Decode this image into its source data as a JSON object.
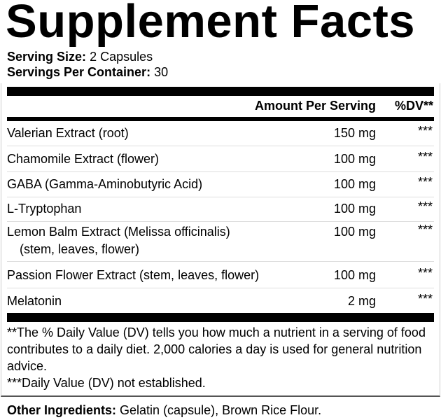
{
  "title": "Supplement Facts",
  "serving_size": {
    "label": "Serving Size:",
    "value": "2 Capsules"
  },
  "servings_per_container": {
    "label": "Servings Per Container:",
    "value": "30"
  },
  "header": {
    "amount": "Amount Per Serving",
    "dv": "%DV**"
  },
  "rows": [
    {
      "name": "Valerian Extract (root)",
      "amount": "150 mg",
      "dv": "***"
    },
    {
      "name": "Chamomile Extract (flower)",
      "amount": "100 mg",
      "dv": "***"
    },
    {
      "name": "GABA (Gamma-Aminobutyric Acid)",
      "amount": "100 mg",
      "dv": "***"
    },
    {
      "name": "L-Tryptophan",
      "amount": "100 mg",
      "dv": "***"
    },
    {
      "name": "Lemon Balm Extract (Melissa officinalis)",
      "name2": "(stem, leaves, flower)",
      "amount": "100 mg",
      "dv": "***"
    },
    {
      "name": "Passion Flower Extract (stem, leaves, flower)",
      "amount": "100 mg",
      "dv": "***"
    },
    {
      "name": "Melatonin",
      "amount": "2 mg",
      "dv": "***"
    }
  ],
  "footnotes": {
    "dv_note": "**The % Daily Value (DV) tells you how much a nutrient in a serving of food contributes to a daily diet. 2,000 calories a day is used for general nutrition advice.",
    "not_established": "***Daily Value (DV) not established."
  },
  "other_ingredients": {
    "label": "Other Ingredients:",
    "value": "Gelatin (capsule), Brown Rice Flour."
  }
}
